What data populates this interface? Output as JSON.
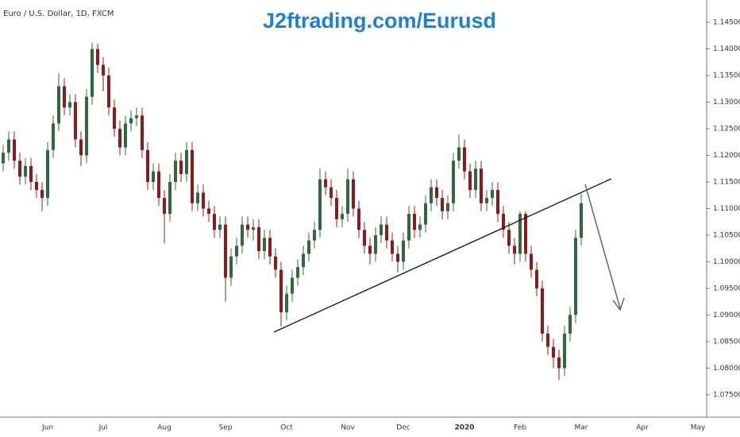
{
  "chart_data": {
    "type": "candlestick",
    "title": "J2ftrading.com/Eurusd",
    "subtitle": "Euro / U.S. Dollar, 1D, FXCM",
    "categories": [
      null,
      null,
      null,
      null,
      null,
      null,
      null,
      null,
      "Jun",
      null,
      null,
      null,
      null,
      null,
      null,
      null,
      null,
      null,
      "Jul",
      null,
      null,
      null,
      null,
      null,
      null,
      null,
      null,
      null,
      null,
      "Aug",
      null,
      null,
      null,
      null,
      null,
      null,
      null,
      null,
      null,
      null,
      "Sep",
      null,
      null,
      null,
      null,
      null,
      null,
      null,
      null,
      null,
      null,
      "Oct",
      null,
      null,
      null,
      null,
      null,
      null,
      null,
      null,
      null,
      null,
      "Nov",
      null,
      null,
      null,
      null,
      null,
      null,
      null,
      null,
      null,
      "Dec",
      null,
      null,
      null,
      null,
      null,
      null,
      null,
      null,
      null,
      null,
      "2020",
      null,
      null,
      null,
      null,
      null,
      null,
      null,
      null,
      null,
      "Feb",
      null,
      null,
      null,
      null,
      null,
      null,
      null,
      null,
      null,
      null,
      "Mar",
      null,
      null,
      null,
      null,
      null,
      null,
      null,
      null,
      null,
      null,
      "Apr",
      null,
      null,
      null,
      null,
      null,
      null,
      null,
      null,
      null,
      "May"
    ],
    "open": [
      1.1185,
      1.1205,
      1.123,
      1.119,
      1.116,
      1.118,
      1.115,
      1.1135,
      1.112,
      1.121,
      1.126,
      1.133,
      1.129,
      1.13,
      1.123,
      1.12,
      1.131,
      1.14,
      1.137,
      1.135,
      1.129,
      1.125,
      1.1215,
      1.126,
      1.127,
      1.1275,
      1.121,
      1.115,
      1.117,
      1.112,
      1.109,
      1.115,
      1.119,
      1.1165,
      1.121,
      1.111,
      1.113,
      1.11,
      1.109,
      1.106,
      1.107,
      1.097,
      1.101,
      1.103,
      1.107,
      1.106,
      1.1065,
      1.102,
      1.1045,
      1.101,
      1.0985,
      1.0905,
      1.094,
      1.097,
      1.099,
      1.1015,
      1.104,
      1.106,
      1.1155,
      1.114,
      1.112,
      1.108,
      1.109,
      1.1155,
      1.11,
      1.106,
      1.103,
      1.1015,
      1.105,
      1.107,
      1.104,
      1.1015,
      1.1,
      1.104,
      1.109,
      1.106,
      1.107,
      1.111,
      1.114,
      1.112,
      1.1095,
      1.111,
      1.119,
      1.1215,
      1.117,
      1.1135,
      1.1175,
      1.111,
      1.112,
      1.1135,
      1.109,
      1.106,
      1.103,
      1.1015,
      1.109,
      1.1015,
      1.0985,
      1.095,
      1.0865,
      1.084,
      1.082,
      1.08,
      1.0865,
      1.09,
      1.1045,
      null,
      null,
      null,
      null,
      null,
      null,
      null,
      null,
      null,
      null,
      null,
      null,
      null,
      null,
      null,
      null,
      null,
      null,
      null,
      null,
      null
    ],
    "high": [
      1.122,
      1.1245,
      1.1245,
      1.1205,
      1.1195,
      1.1195,
      1.1165,
      1.115,
      1.1225,
      1.1275,
      1.1355,
      1.1345,
      1.1315,
      1.1315,
      1.1245,
      1.1325,
      1.1412,
      1.141,
      1.1385,
      1.1365,
      1.1305,
      1.1265,
      1.1275,
      1.1285,
      1.129,
      1.129,
      1.1225,
      1.1185,
      1.1185,
      1.1135,
      1.1165,
      1.1205,
      1.1205,
      1.1225,
      1.1225,
      1.1145,
      1.1145,
      1.1115,
      1.1105,
      1.1085,
      1.1085,
      1.1025,
      1.1045,
      1.1085,
      1.1085,
      1.108,
      1.108,
      1.106,
      1.106,
      1.1025,
      1.1,
      1.0955,
      1.0985,
      1.1005,
      1.103,
      1.1055,
      1.1075,
      1.1175,
      1.117,
      1.1155,
      1.1135,
      1.1105,
      1.1175,
      1.117,
      1.1115,
      1.1075,
      1.1045,
      1.1065,
      1.1085,
      1.1085,
      1.1055,
      1.103,
      1.1055,
      1.1105,
      1.1105,
      1.1085,
      1.1125,
      1.1155,
      1.1155,
      1.1135,
      1.1125,
      1.1205,
      1.1239,
      1.123,
      1.1185,
      1.119,
      1.119,
      1.1135,
      1.115,
      1.115,
      1.1105,
      1.1075,
      1.1045,
      1.1095,
      1.1095,
      1.103,
      1.1,
      1.0965,
      1.088,
      1.0855,
      1.0835,
      1.088,
      1.0915,
      1.106,
      1.1128,
      null,
      null,
      null,
      null,
      null,
      null,
      null,
      null,
      null,
      null,
      null,
      null,
      null,
      null,
      null,
      null,
      null,
      null,
      null,
      null,
      null
    ],
    "low": [
      1.117,
      1.119,
      1.1175,
      1.1145,
      1.1145,
      1.1135,
      1.112,
      1.1095,
      1.1105,
      1.1195,
      1.1245,
      1.1275,
      1.1275,
      1.1215,
      1.118,
      1.1185,
      1.1295,
      1.1355,
      1.132,
      1.1275,
      1.1235,
      1.12,
      1.12,
      1.1245,
      1.1255,
      1.1195,
      1.1135,
      1.1135,
      1.1105,
      1.1035,
      1.1075,
      1.1135,
      1.115,
      1.115,
      1.1095,
      1.1095,
      1.1085,
      1.1075,
      1.1045,
      1.1045,
      1.0925,
      1.0955,
      1.0995,
      1.1015,
      1.1045,
      1.104,
      1.1005,
      1.1005,
      1.0995,
      1.097,
      1.0878,
      1.089,
      1.0925,
      1.0955,
      1.0975,
      1.1,
      1.1025,
      1.1045,
      1.1125,
      1.1105,
      1.1065,
      1.1065,
      1.1075,
      1.1085,
      1.1045,
      1.1015,
      1.0995,
      1.1,
      1.1035,
      1.1025,
      1.1,
      1.098,
      1.0985,
      1.1025,
      1.1045,
      1.1045,
      1.1055,
      1.1095,
      1.1105,
      1.108,
      1.108,
      1.1095,
      1.1175,
      1.1155,
      1.112,
      1.112,
      1.1095,
      1.1095,
      1.1105,
      1.1075,
      1.1045,
      1.1015,
      1.0995,
      1.1,
      1.1,
      1.097,
      1.0935,
      1.085,
      1.0825,
      1.08,
      1.0778,
      1.0785,
      1.085,
      1.0885,
      1.103,
      null,
      null,
      null,
      null,
      null,
      null,
      null,
      null,
      null,
      null,
      null,
      null,
      null,
      null,
      null,
      null,
      null,
      null,
      null,
      null,
      null
    ],
    "close": [
      1.1205,
      1.123,
      1.119,
      1.116,
      1.118,
      1.115,
      1.1135,
      1.112,
      1.121,
      1.126,
      1.133,
      1.129,
      1.13,
      1.123,
      1.12,
      1.131,
      1.14,
      1.137,
      1.135,
      1.129,
      1.125,
      1.1215,
      1.126,
      1.127,
      1.1275,
      1.121,
      1.115,
      1.117,
      1.112,
      1.109,
      1.115,
      1.119,
      1.1165,
      1.121,
      1.111,
      1.113,
      1.11,
      1.109,
      1.106,
      1.107,
      1.097,
      1.101,
      1.103,
      1.107,
      1.106,
      1.1065,
      1.102,
      1.1045,
      1.101,
      1.0985,
      1.0905,
      1.094,
      1.097,
      1.099,
      1.1015,
      1.104,
      1.106,
      1.1155,
      1.114,
      1.112,
      1.108,
      1.109,
      1.1155,
      1.11,
      1.106,
      1.103,
      1.1015,
      1.105,
      1.107,
      1.104,
      1.1015,
      1.1,
      1.104,
      1.109,
      1.106,
      1.107,
      1.111,
      1.114,
      1.112,
      1.1095,
      1.111,
      1.119,
      1.1215,
      1.117,
      1.1135,
      1.1175,
      1.111,
      1.112,
      1.1135,
      1.109,
      1.106,
      1.103,
      1.1015,
      1.109,
      1.1015,
      1.0985,
      1.095,
      1.0865,
      1.084,
      1.082,
      1.08,
      1.0865,
      1.09,
      1.1045,
      1.111,
      null,
      null,
      null,
      null,
      null,
      null,
      null,
      null,
      null,
      null,
      null,
      null,
      null,
      null,
      null,
      null,
      null,
      null,
      null,
      null,
      null
    ],
    "up_color": "#2e6b3a",
    "down_color": "#8c1c1c",
    "ylim": [
      1.0708,
      1.1492
    ],
    "yticks": [
      {
        "value": 1.075,
        "label": "1.07500"
      },
      {
        "value": 1.08,
        "label": "1.08000"
      },
      {
        "value": 1.085,
        "label": "1.08500"
      },
      {
        "value": 1.09,
        "label": "1.09000"
      },
      {
        "value": 1.095,
        "label": "1.09500"
      },
      {
        "value": 1.1,
        "label": "1.10000"
      },
      {
        "value": 1.105,
        "label": "1.10500"
      },
      {
        "value": 1.11,
        "label": "1.11000"
      },
      {
        "value": 1.115,
        "label": "1.11500"
      },
      {
        "value": 1.12,
        "label": "1.12000"
      },
      {
        "value": 1.125,
        "label": "1.12500"
      },
      {
        "value": 1.13,
        "label": "1.13000"
      },
      {
        "value": 1.135,
        "label": "1.13500"
      },
      {
        "value": 1.14,
        "label": "1.14000"
      },
      {
        "value": 1.145,
        "label": "1.14500"
      }
    ]
  }
}
